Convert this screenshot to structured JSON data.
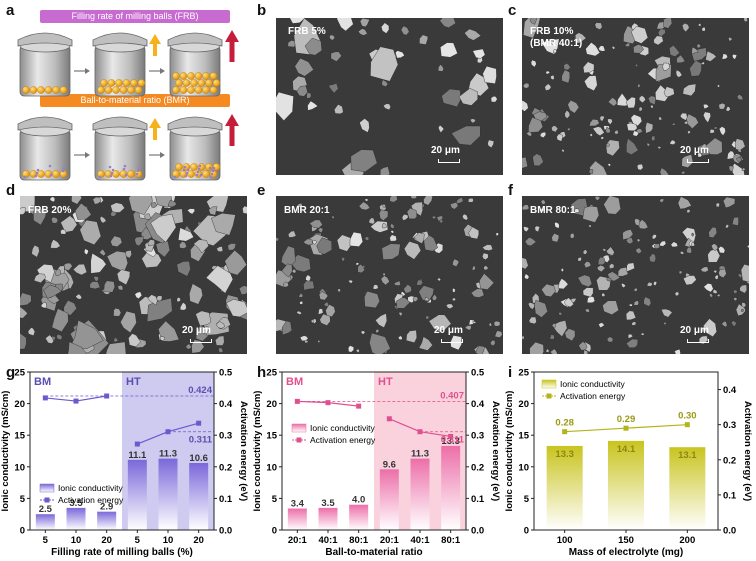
{
  "panels": {
    "a": {
      "label": "a",
      "banner_frb": "Filling rate of milling balls (FRB)",
      "banner_bmr": "Ball-to-material ratio (BMR)",
      "colors": {
        "frb": "#c76bd1",
        "bmr": "#f58a23",
        "up_small": "#f5b21a",
        "up_big": "#c41e3a"
      }
    },
    "b": {
      "label": "b",
      "text": "FRB 5%",
      "scale": "20 μm"
    },
    "c": {
      "label": "c",
      "text": "FRB 10%\n(BMR 40:1)",
      "scale": "20 μm"
    },
    "d": {
      "label": "d",
      "text": "FRB 20%",
      "scale": "20 μm"
    },
    "e": {
      "label": "e",
      "text": "BMR 20:1",
      "scale": "20 μm"
    },
    "f": {
      "label": "f",
      "text": "BMR 80:1",
      "scale": "20 μm"
    }
  },
  "chart_data": [
    {
      "label": "g",
      "type": "bar",
      "categories": [
        "5",
        "10",
        "20",
        "5",
        "10",
        "20"
      ],
      "xlabel": "Filling rate of milling balls (%)",
      "ylabel": "Ionic conductivity (mS/cm)",
      "y2label": "Activation energy (eV)",
      "ylim": [
        0,
        25
      ],
      "yticks": [
        0,
        5,
        10,
        15,
        20,
        25
      ],
      "y2lim": [
        0,
        0.5
      ],
      "y2ticks": [
        0.0,
        0.1,
        0.2,
        0.3,
        0.4,
        0.5
      ],
      "groups": [
        "BM",
        "HT"
      ],
      "series": [
        {
          "name": "Ionic conductivity",
          "kind": "bar",
          "values": [
            2.5,
            3.5,
            2.9,
            11.1,
            11.3,
            10.6
          ],
          "labels": [
            "2.5",
            "3.5",
            "2.9",
            "11.1",
            "11.3",
            "10.6"
          ]
        },
        {
          "name": "Activation energy",
          "kind": "line",
          "values": [
            0.418,
            0.408,
            0.424,
            0.272,
            0.311,
            0.338
          ]
        }
      ],
      "annotations": [
        "0.424",
        "0.311"
      ],
      "colors": {
        "bar": "#7b68d9",
        "line": "#6a5acd",
        "bg": "#cfcaf0",
        "group": "#5a4fb0"
      }
    },
    {
      "label": "h",
      "type": "bar",
      "categories": [
        "20:1",
        "40:1",
        "80:1",
        "20:1",
        "40:1",
        "80:1"
      ],
      "xlabel": "Ball-to-material ratio",
      "ylabel": "Ionic conductivity (mS/cm)",
      "y2label": "Activation energy (eV)",
      "ylim": [
        0,
        25
      ],
      "yticks": [
        0,
        5,
        10,
        15,
        20,
        25
      ],
      "y2lim": [
        0,
        0.5
      ],
      "y2ticks": [
        0.0,
        0.1,
        0.2,
        0.3,
        0.4,
        0.5
      ],
      "groups": [
        "BM",
        "HT"
      ],
      "series": [
        {
          "name": "Ionic conductivity",
          "kind": "bar",
          "values": [
            3.4,
            3.5,
            4.0,
            9.6,
            11.3,
            13.3
          ],
          "labels": [
            "3.4",
            "3.5",
            "4.0",
            "9.6",
            "11.3",
            "13.3"
          ]
        },
        {
          "name": "Activation energy",
          "kind": "line",
          "values": [
            0.407,
            0.403,
            0.392,
            0.352,
            0.311,
            0.296
          ]
        }
      ],
      "annotations": [
        "0.407",
        "0.311"
      ],
      "colors": {
        "bar": "#ec6fa8",
        "line": "#e0508f",
        "bg": "#f9d2dd",
        "group": "#e0508f"
      }
    },
    {
      "label": "i",
      "type": "bar",
      "categories": [
        "100",
        "150",
        "200"
      ],
      "xlabel": "Mass of electrolyte (mg)",
      "ylabel": "Ionic conductivity (mS/cm)",
      "y2label": "Activation energy (eV)",
      "ylim": [
        0,
        25
      ],
      "yticks": [
        0,
        5,
        10,
        15,
        20,
        25
      ],
      "y2lim": [
        0,
        0.45
      ],
      "y2ticks": [
        0.0,
        0.1,
        0.2,
        0.3,
        0.4
      ],
      "series": [
        {
          "name": "Ionic conductivity",
          "kind": "bar",
          "values": [
            13.3,
            14.1,
            13.1
          ],
          "labels": [
            "13.3",
            "14.1",
            "13.1"
          ]
        },
        {
          "name": "Activation energy",
          "kind": "line",
          "values": [
            0.28,
            0.29,
            0.3
          ],
          "labels": [
            "0.28",
            "0.29",
            "0.30"
          ]
        }
      ],
      "colors": {
        "bar": "#c9c41f",
        "line": "#b5b31a",
        "text": "#9b9a12"
      }
    }
  ]
}
